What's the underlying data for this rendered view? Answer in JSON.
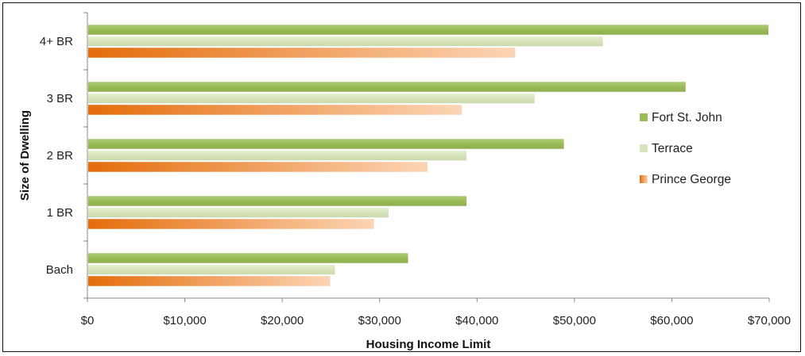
{
  "chart_data": {
    "type": "bar",
    "orientation": "horizontal",
    "categories": [
      "Bach",
      "1 BR",
      "2 BR",
      "3 BR",
      "4+ BR"
    ],
    "series": [
      {
        "name": "Fort St. John",
        "values": [
          33000,
          39000,
          49000,
          61500,
          70000
        ],
        "color": "#9BBB59"
      },
      {
        "name": "Terrace",
        "values": [
          25500,
          31000,
          39000,
          46000,
          53000
        ],
        "color": "#D7E4BD"
      },
      {
        "name": "Prince George",
        "values": [
          25000,
          29500,
          35000,
          38500,
          44000
        ],
        "color_start": "#E46C0A",
        "color_end": "#FCD5B5"
      }
    ],
    "xlabel": "Housing Income Limit",
    "ylabel": "Size of Dwelling",
    "xlim": [
      0,
      70000
    ],
    "xticks": [
      "$0",
      "$10,000",
      "$20,000",
      "$30,000",
      "$40,000",
      "$50,000",
      "$60,000",
      "$70,000"
    ],
    "legend_position": "right",
    "grid": false
  }
}
